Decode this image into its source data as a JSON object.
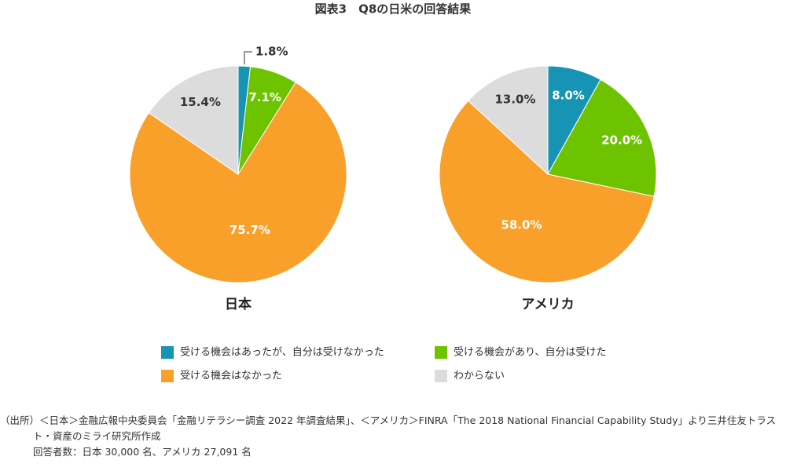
{
  "title": "図表3　Q8の日米の回答結果",
  "chart_data": [
    {
      "type": "pie",
      "title": "日本",
      "categories": [
        "受ける機会はあったが、自分は受けなかった",
        "受ける機会があり、自分は受けた",
        "受ける機会はなかった",
        "わからない"
      ],
      "values": [
        1.8,
        7.1,
        75.7,
        15.4
      ],
      "value_labels": [
        "1.8%",
        "7.1%",
        "75.7%",
        "15.4%"
      ],
      "colors": [
        "#1793b4",
        "#6ec300",
        "#f9a02a",
        "#dcdcdc"
      ]
    },
    {
      "type": "pie",
      "title": "アメリカ",
      "categories": [
        "受ける機会はあったが、自分は受けなかった",
        "受ける機会があり、自分は受けた",
        "受ける機会はなかった",
        "わからない"
      ],
      "values": [
        8.0,
        20.0,
        58.0,
        13.0
      ],
      "value_labels": [
        "8.0%",
        "20.0%",
        "58.0%",
        "13.0%"
      ],
      "colors": [
        "#1793b4",
        "#6ec300",
        "#f9a02a",
        "#dcdcdc"
      ]
    }
  ],
  "source": "（出所）＜日本＞金融広報中央委員会「金融リテラシー調査 2022 年調査結果」、＜アメリカ＞FINRA「The 2018 National Financial Capability Study」より三井住友トラスト・資産のミライ研究所作成",
  "note": "回答者数：日本 30,000 名、アメリカ 27,091 名"
}
